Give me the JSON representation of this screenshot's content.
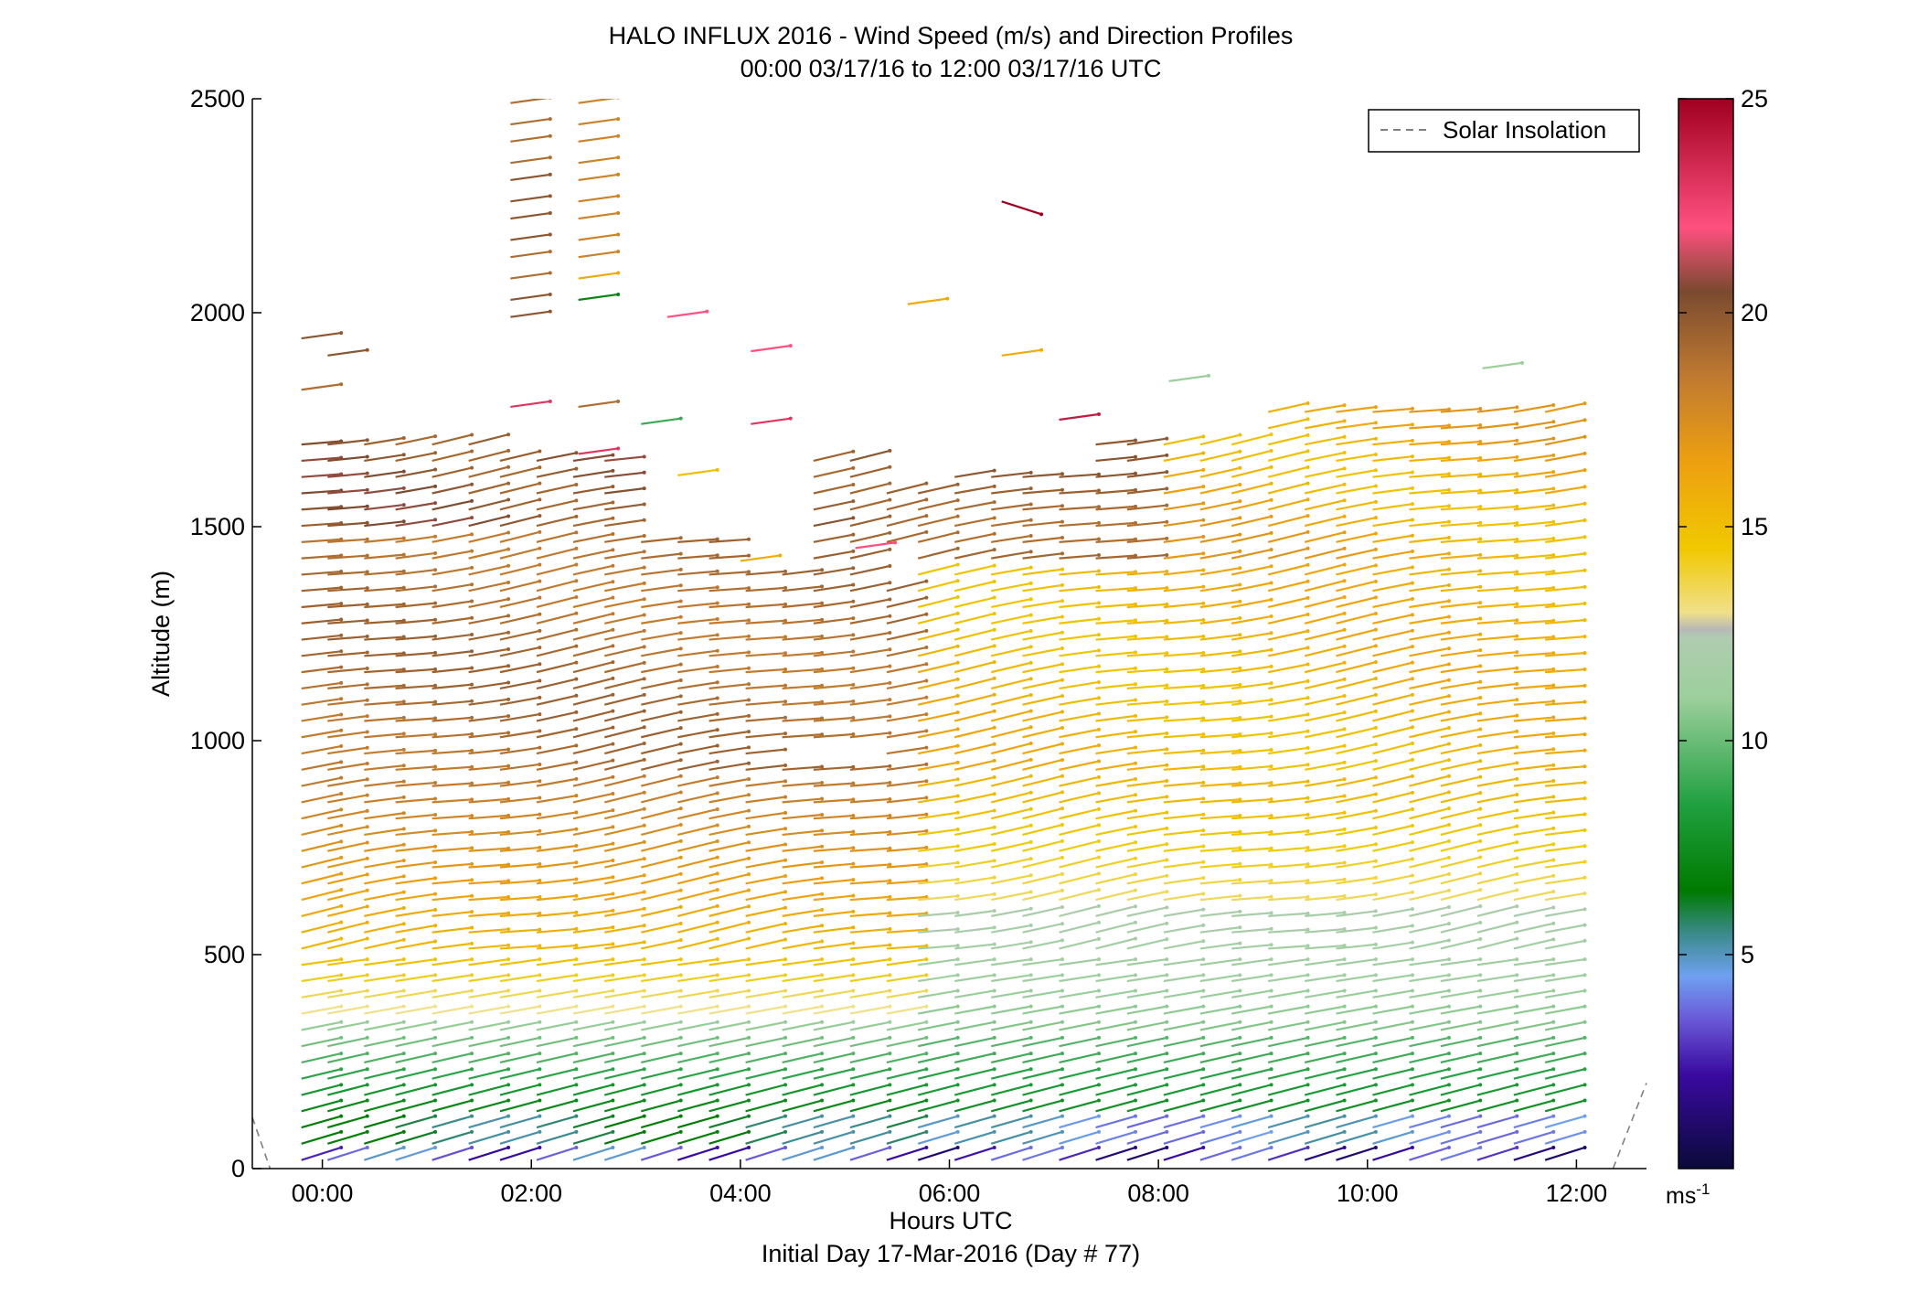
{
  "chart_data": {
    "type": "scatter",
    "title": "HALO INFLUX 2016 - Wind Speed (m/s) and Direction Profiles",
    "subtitle": "00:00 03/17/16 to 12:00 03/17/16  UTC",
    "xlabel": "Hours UTC",
    "xlabel2": "Initial Day 17-Mar-2016 (Day # 77)",
    "ylabel": "Altitude (m)",
    "xlim": [
      -0.67,
      12.67
    ],
    "ylim": [
      0,
      2500
    ],
    "x_ticks": [
      {
        "value": 0,
        "label": "00:00"
      },
      {
        "value": 2,
        "label": "02:00"
      },
      {
        "value": 4,
        "label": "04:00"
      },
      {
        "value": 6,
        "label": "06:00"
      },
      {
        "value": 8,
        "label": "08:00"
      },
      {
        "value": 10,
        "label": "10:00"
      },
      {
        "value": 12,
        "label": "12:00"
      }
    ],
    "y_ticks": [
      {
        "value": 0,
        "label": "0"
      },
      {
        "value": 500,
        "label": "500"
      },
      {
        "value": 1000,
        "label": "1000"
      },
      {
        "value": 1500,
        "label": "1500"
      },
      {
        "value": 2000,
        "label": "2000"
      },
      {
        "value": 2500,
        "label": "2500"
      }
    ],
    "legend": {
      "label": "Solar Insolation",
      "placement": "top-right",
      "line_style": "dashed",
      "color": "#808080"
    },
    "colorbar": {
      "range": [
        0,
        25
      ],
      "ticks": [
        {
          "value": 5,
          "label": "5"
        },
        {
          "value": 10,
          "label": "10"
        },
        {
          "value": 15,
          "label": "15"
        },
        {
          "value": 20,
          "label": "20"
        },
        {
          "value": 25,
          "label": "25"
        }
      ],
      "unit_base": "ms",
      "unit_exp": "-1",
      "stops": [
        {
          "v": 0,
          "color": "#0a0a3a"
        },
        {
          "v": 2.2,
          "color": "#3a0aa0"
        },
        {
          "v": 3.5,
          "color": "#6a5ad8"
        },
        {
          "v": 4.5,
          "color": "#6fa0f0"
        },
        {
          "v": 5.5,
          "color": "#3a8a8a"
        },
        {
          "v": 6.5,
          "color": "#007a00"
        },
        {
          "v": 8.5,
          "color": "#20a040"
        },
        {
          "v": 11,
          "color": "#9ccf9c"
        },
        {
          "v": 12.4,
          "color": "#b0ccb0"
        },
        {
          "v": 12.6,
          "color": "#b8b8b8"
        },
        {
          "v": 13,
          "color": "#f0e08a"
        },
        {
          "v": 14.5,
          "color": "#f0c800"
        },
        {
          "v": 16.5,
          "color": "#eea010"
        },
        {
          "v": 18.5,
          "color": "#c07a30"
        },
        {
          "v": 20.5,
          "color": "#7a4a30"
        },
        {
          "v": 22,
          "color": "#ff5080"
        },
        {
          "v": 25,
          "color": "#a00020"
        }
      ]
    },
    "series": [
      {
        "name": "Solar Insolation",
        "style": "dashed",
        "color": "#808080",
        "segments": [
          [
            [
              -0.67,
              120
            ],
            [
              -0.5,
              0
            ]
          ],
          [
            [
              12.35,
              0
            ],
            [
              12.67,
              200
            ]
          ]
        ]
      }
    ],
    "wind_profiles": {
      "description_fields": [
        "time_hours",
        "top_altitude_m",
        "speed_expression"
      ],
      "times": [
        -0.2,
        0.05,
        0.4,
        0.7,
        1.05,
        1.4,
        1.7,
        2.05,
        2.4,
        2.7,
        3.05,
        3.4,
        3.7,
        4.05,
        4.4,
        4.7,
        5.05,
        5.4,
        5.7,
        6.05,
        6.4,
        6.7,
        7.05,
        7.4,
        7.7,
        8.05,
        8.4,
        8.7,
        9.05,
        9.4,
        9.7,
        10.05,
        10.4,
        10.7,
        11.05,
        11.4,
        11.7
      ],
      "altitude_step_m": 38,
      "typical_top_m": 1700,
      "vector_length_hours": 0.38,
      "sparse_high_vectors": [
        {
          "t": 1.8,
          "z": 2490,
          "s": 19
        },
        {
          "t": 1.8,
          "z": 2440,
          "s": 19
        },
        {
          "t": 1.8,
          "z": 2400,
          "s": 19
        },
        {
          "t": 1.8,
          "z": 2350,
          "s": 19
        },
        {
          "t": 1.8,
          "z": 2310,
          "s": 20
        },
        {
          "t": 1.8,
          "z": 2260,
          "s": 20
        },
        {
          "t": 1.8,
          "z": 2220,
          "s": 20
        },
        {
          "t": 1.8,
          "z": 2170,
          "s": 20
        },
        {
          "t": 1.8,
          "z": 2130,
          "s": 19
        },
        {
          "t": 1.8,
          "z": 2080,
          "s": 19
        },
        {
          "t": 1.8,
          "z": 2030,
          "s": 20
        },
        {
          "t": 1.8,
          "z": 1990,
          "s": 20
        },
        {
          "t": 2.45,
          "z": 2490,
          "s": 18
        },
        {
          "t": 2.45,
          "z": 2440,
          "s": 18
        },
        {
          "t": 2.45,
          "z": 2400,
          "s": 18
        },
        {
          "t": 2.45,
          "z": 2350,
          "s": 18
        },
        {
          "t": 2.45,
          "z": 2310,
          "s": 18
        },
        {
          "t": 2.45,
          "z": 2260,
          "s": 18
        },
        {
          "t": 2.45,
          "z": 2220,
          "s": 18
        },
        {
          "t": 2.45,
          "z": 2170,
          "s": 18
        },
        {
          "t": 2.45,
          "z": 2130,
          "s": 18
        },
        {
          "t": 2.45,
          "z": 2080,
          "s": 16
        },
        {
          "t": 2.45,
          "z": 2030,
          "s": 7
        },
        {
          "t": -0.2,
          "z": 1940,
          "s": 20
        },
        {
          "t": 0.05,
          "z": 1900,
          "s": 20
        },
        {
          "t": -0.2,
          "z": 1820,
          "s": 19
        },
        {
          "t": 3.3,
          "z": 1990,
          "s": 22
        },
        {
          "t": 4.1,
          "z": 1910,
          "s": 22
        },
        {
          "t": 1.8,
          "z": 1780,
          "s": 23
        },
        {
          "t": 2.45,
          "z": 1780,
          "s": 19
        },
        {
          "t": 5.6,
          "z": 2020,
          "s": 16
        },
        {
          "t": 6.5,
          "z": 2260,
          "s": 25
        },
        {
          "t": 6.5,
          "z": 1900,
          "s": 16
        },
        {
          "t": 7.05,
          "z": 1750,
          "s": 24
        },
        {
          "t": 8.1,
          "z": 1840,
          "s": 11
        },
        {
          "t": 11.1,
          "z": 1870,
          "s": 11
        },
        {
          "t": 3.05,
          "z": 1740,
          "s": 9
        },
        {
          "t": 4.1,
          "z": 1740,
          "s": 23
        },
        {
          "t": 2.45,
          "z": 1670,
          "s": 23
        },
        {
          "t": 3.4,
          "z": 1620,
          "s": 15
        },
        {
          "t": 5.1,
          "z": 1450,
          "s": 22
        },
        {
          "t": 4.0,
          "z": 1420,
          "s": 16
        }
      ]
    }
  }
}
